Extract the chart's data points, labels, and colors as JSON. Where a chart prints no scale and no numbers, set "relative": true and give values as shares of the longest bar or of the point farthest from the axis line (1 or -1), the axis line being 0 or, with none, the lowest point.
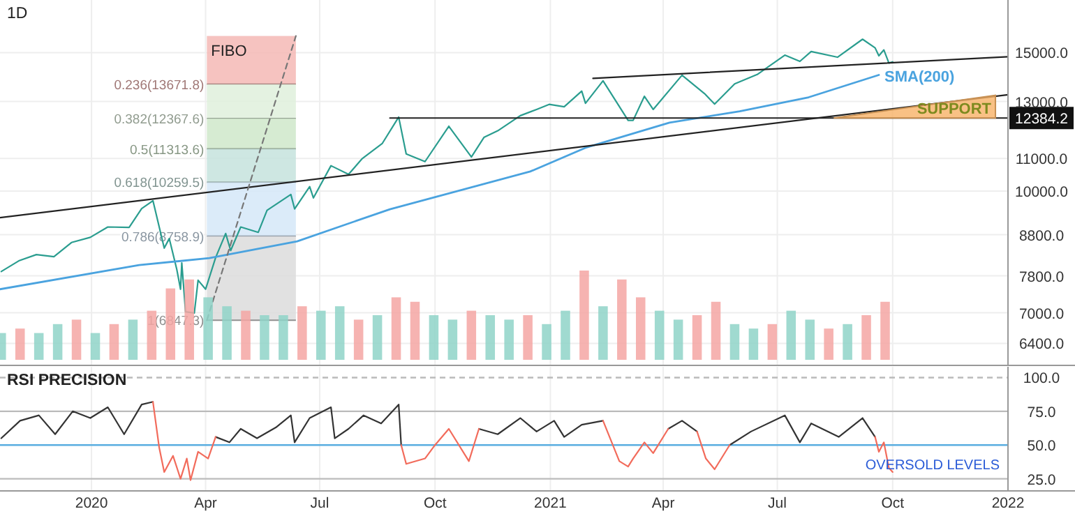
{
  "chart_data": [
    {
      "type": "line",
      "title": "1D",
      "log": true,
      "grid": true,
      "tick_labels": "y",
      "xlim": [
        "2019-10-20",
        "2022-01-01"
      ],
      "ylim": [
        6000,
        17500
      ],
      "xticks": [
        {
          "value": "2020-01-01",
          "label": null
        },
        {
          "value": "2020-04-01",
          "label": null
        },
        {
          "value": "2020-07-01",
          "label": null
        },
        {
          "value": "2020-10-01",
          "label": null
        },
        {
          "value": "2021-01-01",
          "label": null
        },
        {
          "value": "2021-04-01",
          "label": null
        },
        {
          "value": "2021-07-01",
          "label": null
        },
        {
          "value": "2021-10-01",
          "label": null
        }
      ],
      "yticks": [
        {
          "value": 6400,
          "label": "6400.0"
        },
        {
          "value": 7000,
          "label": "7000.0"
        },
        {
          "value": 7800,
          "label": "7800.0"
        },
        {
          "value": 8800,
          "label": "8800.0"
        },
        {
          "value": 10000,
          "label": "10000.0"
        },
        {
          "value": 11000,
          "label": "11000.0"
        },
        {
          "value": 13000,
          "label": "13000.0"
        },
        {
          "value": 15000,
          "label": "15000.0"
        }
      ],
      "annotations": [
        "FIBO"
      ],
      "bands": [
        {
          "axis": "y",
          "from": 13671.8,
          "to": 15750,
          "label": "0.236(13671.8)",
          "color": "#f5b8b5"
        },
        {
          "axis": "y",
          "from": 12367.6,
          "to": 13671.8,
          "label": "0.382(12367.6)",
          "color": "#dff0dc"
        },
        {
          "axis": "y",
          "from": 11313.6,
          "to": 12367.6,
          "label": "0.5(11313.6)",
          "color": "#cfe8ca"
        },
        {
          "axis": "y",
          "from": 10259.5,
          "to": 11313.6,
          "label": "0.618(10259.5)",
          "color": "#c6e3dd"
        },
        {
          "axis": "y",
          "from": 8758.9,
          "to": 10259.5,
          "label": "0.786(8758.9)",
          "color": "#d5e8f8"
        },
        {
          "axis": "y",
          "from": 6847.3,
          "to": 8758.9,
          "label": "1(6847.3)",
          "color": "#dcdcdc"
        }
      ],
      "series": [
        {
          "type": "line",
          "color": "#2a9d8f",
          "x": [
            "2019-10-21",
            "2019-11-04",
            "2019-11-18",
            "2019-12-02",
            "2019-12-16",
            "2019-12-31",
            "2020-01-14",
            "2020-01-31",
            "2020-02-10",
            "2020-02-19",
            "2020-02-28",
            "2020-03-03",
            "2020-03-09",
            "2020-03-12",
            "2020-03-13",
            "2020-03-16",
            "2020-03-23",
            "2020-03-26",
            "2020-04-01",
            "2020-04-09",
            "2020-04-17",
            "2020-04-21",
            "2020-04-29",
            "2020-05-13",
            "2020-05-20",
            "2020-06-08",
            "2020-06-11",
            "2020-06-23",
            "2020-06-26",
            "2020-07-10",
            "2020-07-24",
            "2020-08-04",
            "2020-08-20",
            "2020-09-02",
            "2020-09-08",
            "2020-09-23",
            "2020-10-12",
            "2020-10-30",
            "2020-11-09",
            "2020-11-20",
            "2020-12-08",
            "2020-12-21",
            "2020-12-31",
            "2021-01-12",
            "2021-01-26",
            "2021-01-29",
            "2021-02-12",
            "2021-03-04",
            "2021-03-08",
            "2021-03-17",
            "2021-03-24",
            "2021-04-16",
            "2021-05-04",
            "2021-05-12",
            "2021-05-28",
            "2021-06-15",
            "2021-07-07",
            "2021-07-19",
            "2021-07-28",
            "2021-08-18",
            "2021-09-07",
            "2021-09-17",
            "2021-09-20",
            "2021-09-24",
            "2021-09-28",
            "2021-10-01"
          ],
          "values": [
            7900,
            8150,
            8300,
            8250,
            8600,
            8730,
            9000,
            8990,
            9500,
            9720,
            8460,
            8700,
            7950,
            7500,
            8100,
            7020,
            6994,
            7700,
            7500,
            8230,
            8830,
            8400,
            9000,
            8860,
            9450,
            9900,
            9490,
            10130,
            9800,
            10770,
            10500,
            11000,
            11500,
            12420,
            11150,
            10900,
            12090,
            11050,
            11700,
            11930,
            12470,
            12700,
            12890,
            12800,
            13400,
            12930,
            13810,
            12300,
            12300,
            13200,
            12700,
            14040,
            13300,
            12900,
            13690,
            14070,
            14890,
            14620,
            15050,
            14800,
            15600,
            15210,
            14860,
            15120,
            14550,
            14600
          ]
        },
        {
          "type": "line",
          "name": "SMA(200)",
          "color": "#4aa3df",
          "x": [
            "2019-10-20",
            "2020-02-08",
            "2020-04-04",
            "2020-06-13",
            "2020-08-26",
            "2020-12-16",
            "2021-01-29",
            "2021-04-06",
            "2021-06-01",
            "2021-07-26",
            "2021-09-20"
          ],
          "values": [
            7500,
            8050,
            8215,
            8630,
            9480,
            10590,
            11350,
            12220,
            12630,
            13160,
            14050
          ]
        },
        {
          "type": "line",
          "color": "#222222",
          "x": [
            "2019-10-20",
            "2022-01-01"
          ],
          "values": [
            9250,
            13260
          ]
        },
        {
          "type": "line",
          "color": "#222222",
          "x": [
            "2021-02-04",
            "2022-01-01"
          ],
          "values": [
            13910,
            14820
          ]
        },
        {
          "type": "line",
          "color": "#222222",
          "x": [
            "2020-08-26",
            "2022-01-01"
          ],
          "values": [
            12384.2,
            12384.2
          ],
          "value_labels": [
            null,
            "12384.2"
          ]
        },
        {
          "type": "line",
          "color": "#777777",
          "line_style": "dashed",
          "x": [
            "2020-04-02",
            "2020-06-12"
          ],
          "values": [
            6847.3,
            15750
          ]
        },
        {
          "type": "area",
          "name": "SUPPORT",
          "color": "#f7b267",
          "x": [
            "2021-08-15",
            "2021-12-22"
          ],
          "values": [
            12384.2,
            13240
          ]
        }
      ]
    },
    {
      "type": "bar",
      "relative": true,
      "tick_labels": false,
      "xlim": [
        "2019-10-20",
        "2022-01-01"
      ],
      "x": [
        "2019-10-21",
        "2019-11-05",
        "2019-11-20",
        "2019-12-05",
        "2019-12-20",
        "2020-01-04",
        "2020-01-19",
        "2020-02-03",
        "2020-02-18",
        "2020-03-04",
        "2020-03-19",
        "2020-04-03",
        "2020-04-18",
        "2020-05-03",
        "2020-05-18",
        "2020-06-02",
        "2020-06-17",
        "2020-07-02",
        "2020-07-17",
        "2020-08-01",
        "2020-08-16",
        "2020-08-31",
        "2020-09-15",
        "2020-09-30",
        "2020-10-15",
        "2020-10-30",
        "2020-11-14",
        "2020-11-29",
        "2020-12-14",
        "2020-12-29",
        "2021-01-13",
        "2021-01-28",
        "2021-02-12",
        "2021-02-27",
        "2021-03-14",
        "2021-03-29",
        "2021-04-13",
        "2021-04-28",
        "2021-05-13",
        "2021-05-28",
        "2021-06-12",
        "2021-06-27",
        "2021-07-12",
        "2021-07-27",
        "2021-08-11",
        "2021-08-26",
        "2021-09-10",
        "2021-09-25"
      ],
      "values": [
        0.3,
        0.35,
        0.3,
        0.4,
        0.45,
        0.3,
        0.4,
        0.45,
        0.55,
        0.8,
        0.9,
        0.7,
        0.6,
        0.55,
        0.5,
        0.5,
        0.6,
        0.55,
        0.6,
        0.45,
        0.5,
        0.7,
        0.65,
        0.5,
        0.45,
        0.55,
        0.5,
        0.45,
        0.5,
        0.4,
        0.55,
        1,
        0.6,
        0.9,
        0.7,
        0.55,
        0.45,
        0.5,
        0.65,
        0.4,
        0.35,
        0.4,
        0.55,
        0.45,
        0.35,
        0.4,
        0.5,
        0.65
      ],
      "colors": [
        "#8fd3c8",
        "#f4a6a3",
        "#8fd3c8",
        "#8fd3c8",
        "#f4a6a3",
        "#8fd3c8",
        "#f4a6a3",
        "#8fd3c8",
        "#f4a6a3",
        "#f4a6a3",
        "#f4a6a3",
        "#8fd3c8",
        "#8fd3c8",
        "#f4a6a3",
        "#8fd3c8",
        "#8fd3c8",
        "#f4a6a3",
        "#8fd3c8",
        "#8fd3c8",
        "#f4a6a3",
        "#8fd3c8",
        "#f4a6a3",
        "#f4a6a3",
        "#8fd3c8",
        "#8fd3c8",
        "#f4a6a3",
        "#8fd3c8",
        "#8fd3c8",
        "#f4a6a3",
        "#8fd3c8",
        "#8fd3c8",
        "#f4a6a3",
        "#8fd3c8",
        "#f4a6a3",
        "#f4a6a3",
        "#8fd3c8",
        "#8fd3c8",
        "#f4a6a3",
        "#f4a6a3",
        "#8fd3c8",
        "#8fd3c8",
        "#f4a6a3",
        "#8fd3c8",
        "#8fd3c8",
        "#f4a6a3",
        "#8fd3c8",
        "#f4a6a3",
        "#f4a6a3"
      ]
    },
    {
      "type": "line",
      "title": "RSI PRECISION",
      "grid": "x",
      "xlim": [
        "2019-10-20",
        "2022-01-01"
      ],
      "ylim": [
        16,
        108
      ],
      "xticks": [
        {
          "value": "2020-01-01",
          "label": "2020"
        },
        {
          "value": "2020-04-01",
          "label": "Apr"
        },
        {
          "value": "2020-07-01",
          "label": "Jul"
        },
        {
          "value": "2020-10-01",
          "label": "Oct"
        },
        {
          "value": "2021-01-01",
          "label": "2021"
        },
        {
          "value": "2021-04-01",
          "label": "Apr"
        },
        {
          "value": "2021-07-01",
          "label": "Jul"
        },
        {
          "value": "2021-10-01",
          "label": "Oct"
        },
        {
          "value": "2022-01-01",
          "label": "2022"
        }
      ],
      "yticks": [
        {
          "value": 25,
          "label": "25.0"
        },
        {
          "value": 50,
          "label": "50.0"
        },
        {
          "value": 75,
          "label": "75.0"
        },
        {
          "value": 100,
          "label": "100.0"
        }
      ],
      "annotations": [
        "OVERSOLD LEVELS"
      ],
      "ref_lines": [
        {
          "axis": "y",
          "value": 100,
          "color": "#bbbbbb",
          "line_style": "dashed"
        },
        {
          "axis": "y",
          "value": 75,
          "color": "#bbbbbb"
        },
        {
          "axis": "y",
          "value": 50,
          "color": "#5aaee0"
        },
        {
          "axis": "y",
          "value": 25,
          "color": "#bbbbbb"
        }
      ],
      "x": [
        "2019-10-21",
        "2019-11-05",
        "2019-11-20",
        "2019-12-03",
        "2019-12-17",
        "2019-12-31",
        "2020-01-14",
        "2020-01-27",
        "2020-02-10",
        "2020-02-19",
        "2020-02-24",
        "2020-02-28",
        "2020-03-06",
        "2020-03-12",
        "2020-03-17",
        "2020-03-20",
        "2020-03-26",
        "2020-04-03",
        "2020-04-09",
        "2020-04-20",
        "2020-04-29",
        "2020-05-12",
        "2020-05-27",
        "2020-06-08",
        "2020-06-11",
        "2020-06-23",
        "2020-07-10",
        "2020-07-13",
        "2020-07-24",
        "2020-08-05",
        "2020-08-19",
        "2020-09-02",
        "2020-09-04",
        "2020-09-08",
        "2020-09-23",
        "2020-10-01",
        "2020-10-12",
        "2020-10-28",
        "2020-11-05",
        "2020-11-20",
        "2020-12-08",
        "2020-12-21",
        "2021-01-04",
        "2021-01-12",
        "2021-01-26",
        "2021-02-12",
        "2021-02-25",
        "2021-03-04",
        "2021-03-08",
        "2021-03-17",
        "2021-03-24",
        "2021-04-05",
        "2021-04-16",
        "2021-04-28",
        "2021-05-05",
        "2021-05-12",
        "2021-05-24",
        "2021-06-10",
        "2021-07-07",
        "2021-07-19",
        "2021-07-28",
        "2021-08-19",
        "2021-09-07",
        "2021-09-17",
        "2021-09-20",
        "2021-09-24",
        "2021-09-28",
        "2021-10-01"
      ],
      "series": [
        {
          "color": "#333333",
          "values": [
            55,
            68,
            72,
            58,
            75,
            70,
            78,
            58,
            80,
            82,
            null,
            null,
            null,
            null,
            null,
            null,
            null,
            null,
            56,
            52,
            62,
            55,
            63,
            72,
            52,
            70,
            78,
            55,
            62,
            72,
            66,
            80,
            50,
            null,
            null,
            null,
            null,
            null,
            62,
            58,
            70,
            60,
            68,
            56,
            65,
            68,
            null,
            null,
            null,
            null,
            null,
            62,
            68,
            60,
            null,
            null,
            50,
            60,
            72,
            52,
            66,
            56,
            70,
            56,
            null,
            null,
            null,
            null
          ]
        },
        {
          "color": "#f26b5b",
          "values": [
            null,
            null,
            null,
            null,
            null,
            null,
            null,
            null,
            null,
            82,
            48,
            30,
            42,
            25,
            40,
            24,
            45,
            40,
            56,
            null,
            null,
            null,
            null,
            null,
            null,
            null,
            null,
            null,
            null,
            null,
            null,
            null,
            50,
            36,
            40,
            50,
            62,
            38,
            62,
            null,
            null,
            null,
            null,
            null,
            null,
            68,
            38,
            34,
            40,
            52,
            44,
            62,
            null,
            60,
            40,
            32,
            50,
            null,
            null,
            null,
            null,
            null,
            null,
            56,
            45,
            52,
            33,
            30
          ]
        }
      ]
    }
  ]
}
